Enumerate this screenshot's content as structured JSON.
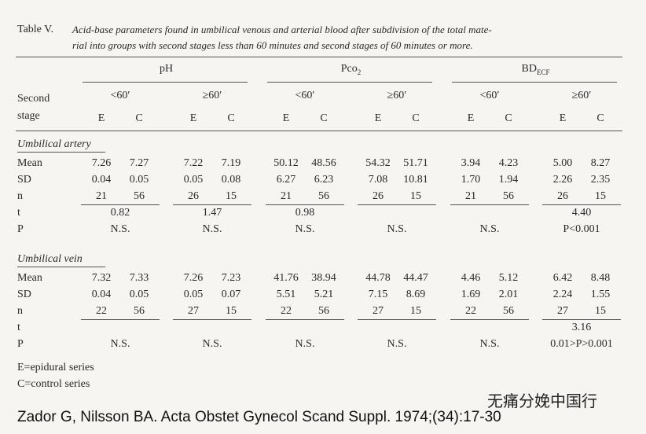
{
  "table": {
    "label": "Table V.",
    "caption_lines": [
      "Acid-base parameters found in umbilical venous and arterial blood after subdivision of the total mate-",
      "rial into groups with second stages less than 60 minutes and second stages of 60 minutes or more."
    ],
    "parameters": [
      {
        "label": "pH"
      },
      {
        "label": "Pco",
        "sub": "2"
      },
      {
        "label": "BD",
        "sub": "ECF"
      }
    ],
    "stage_label": [
      "Second",
      "stage"
    ],
    "groups": [
      "<60′",
      "≥60′",
      "<60′",
      "≥60′",
      "<60′",
      "≥60′"
    ],
    "series_labels": [
      "E",
      "C",
      "E",
      "C",
      "E",
      "C",
      "E",
      "C",
      "E",
      "C",
      "E",
      "C"
    ],
    "sections": [
      {
        "title": "Umbilical artery",
        "rows": [
          {
            "label": "Mean",
            "cells": [
              "7.26",
              "7.27",
              "7.22",
              "7.19",
              "50.12",
              "48.56",
              "54.32",
              "51.71",
              "3.94",
              "4.23",
              "5.00",
              "8.27"
            ]
          },
          {
            "label": "SD",
            "cells": [
              "0.04",
              "0.05",
              "0.05",
              "0.08",
              "6.27",
              "6.23",
              "7.08",
              "10.81",
              "1.70",
              "1.94",
              "2.26",
              "2.35"
            ]
          },
          {
            "label": "n",
            "cells": [
              "21",
              "56",
              "26",
              "15",
              "21",
              "56",
              "26",
              "15",
              "21",
              "56",
              "26",
              "15"
            ]
          },
          {
            "label": "t",
            "group_cells": [
              "0.82",
              "1.47",
              "0.98",
              null,
              null,
              "4.40"
            ]
          },
          {
            "label": "P",
            "group_cells": [
              "N.S.",
              "N.S.",
              "N.S.",
              "N.S.",
              "N.S.",
              "P<0.001"
            ]
          }
        ]
      },
      {
        "title": "Umbilical vein",
        "rows": [
          {
            "label": "Mean",
            "cells": [
              "7.32",
              "7.33",
              "7.26",
              "7.23",
              "41.76",
              "38.94",
              "44.78",
              "44.47",
              "4.46",
              "5.12",
              "6.42",
              "8.48"
            ]
          },
          {
            "label": "SD",
            "cells": [
              "0.04",
              "0.05",
              "0.05",
              "0.07",
              "5.51",
              "5.21",
              "7.15",
              "8.69",
              "1.69",
              "2.01",
              "2.24",
              "1.55"
            ]
          },
          {
            "label": "n",
            "cells": [
              "22",
              "56",
              "27",
              "15",
              "22",
              "56",
              "27",
              "15",
              "22",
              "56",
              "27",
              "15"
            ]
          },
          {
            "label": "t",
            "group_cells": [
              null,
              null,
              null,
              null,
              null,
              "3.16"
            ]
          },
          {
            "label": "P",
            "group_cells": [
              "N.S.",
              "N.S.",
              "N.S.",
              "N.S.",
              "N.S.",
              "0.01>P>0.001"
            ]
          }
        ]
      }
    ],
    "footnotes": [
      "E=epidural series",
      "C=control series"
    ]
  },
  "watermark": "无痛分娩中国行",
  "citation": "Zador G, Nilsson BA. Acta Obstet Gynecol Scand Suppl. 1974;(34):17-30"
}
